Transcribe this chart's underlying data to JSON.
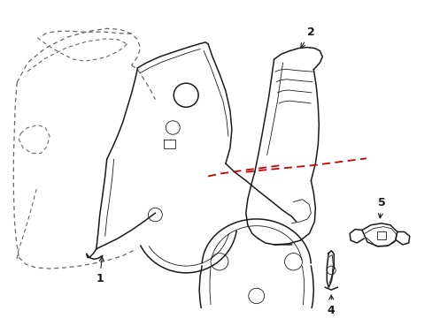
{
  "bg_color": "#ffffff",
  "line_color": "#1a1a1a",
  "red_color": "#cc0000",
  "gray_dash": "#666666",
  "lw_main": 1.1,
  "lw_thin": 0.6,
  "lw_red": 1.3
}
